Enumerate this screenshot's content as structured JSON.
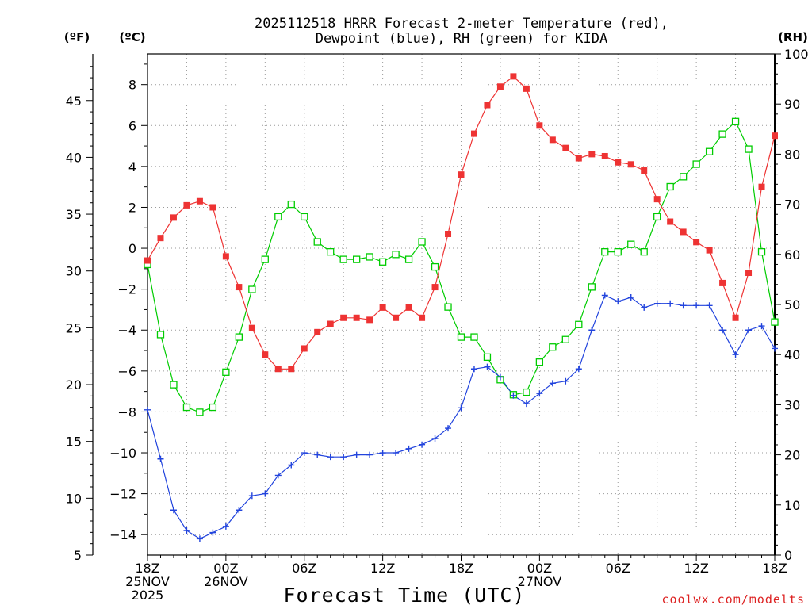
{
  "chart_data": {
    "type": "line",
    "title_line1": "2025112518 HRRR Forecast 2-meter Temperature (red),",
    "title_line2": "Dewpoint (blue), RH (green) for KIDA",
    "xlabel": "Forecast Time (UTC)",
    "watermark": "coolwx.com/modelts",
    "unit_f": "(ºF)",
    "unit_c": "(ºC)",
    "unit_rh": "(RH)",
    "x_ticks": [
      {
        "h": 0,
        "lines": [
          "18Z",
          "25NOV",
          "2025"
        ]
      },
      {
        "h": 6,
        "lines": [
          "00Z",
          "26NOV"
        ]
      },
      {
        "h": 12,
        "lines": [
          "06Z"
        ]
      },
      {
        "h": 18,
        "lines": [
          "12Z"
        ]
      },
      {
        "h": 24,
        "lines": [
          "18Z"
        ]
      },
      {
        "h": 30,
        "lines": [
          "00Z",
          "27NOV"
        ]
      },
      {
        "h": 36,
        "lines": [
          "06Z"
        ]
      },
      {
        "h": 42,
        "lines": [
          "12Z"
        ]
      },
      {
        "h": 48,
        "lines": [
          "18Z"
        ]
      }
    ],
    "xlim": [
      0,
      48
    ],
    "ylim_c": [
      -15,
      9.5
    ],
    "ylim_rh": [
      0,
      100
    ],
    "c_ticks": [
      8,
      6,
      4,
      2,
      0,
      -2,
      -4,
      -6,
      -8,
      -10,
      -12,
      -14
    ],
    "f_ticks": [
      45,
      40,
      35,
      30,
      25,
      20,
      15,
      10,
      5
    ],
    "rh_ticks": [
      100,
      90,
      80,
      70,
      60,
      50,
      40,
      30,
      20,
      10,
      0
    ],
    "grid": true,
    "colors": {
      "temperature": "#ee3333",
      "dewpoint": "#2244dd",
      "rh": "#00cc00"
    },
    "temperature_c": [
      -0.6,
      0.5,
      1.5,
      2.1,
      2.3,
      2.0,
      -0.4,
      -1.9,
      -3.9,
      -5.2,
      -5.9,
      -5.9,
      -4.9,
      -4.1,
      -3.7,
      -3.4,
      -3.4,
      -3.5,
      -2.9,
      -3.4,
      -2.9,
      -3.4,
      -1.9,
      0.7,
      3.6,
      5.6,
      7.0,
      7.9,
      8.4,
      7.8,
      6.0,
      5.3,
      4.9,
      4.4,
      4.6,
      4.5,
      4.2,
      4.1,
      3.8,
      2.4,
      1.3,
      0.8,
      0.3,
      -0.1,
      -1.7,
      -3.4,
      -1.2,
      3.0,
      5.5
    ],
    "dewpoint_c": [
      -7.9,
      -10.3,
      -12.8,
      -13.8,
      -14.2,
      -13.9,
      -13.6,
      -12.8,
      -12.1,
      -12.0,
      -11.1,
      -10.6,
      -10.0,
      -10.1,
      -10.2,
      -10.2,
      -10.1,
      -10.1,
      -10.0,
      -10.0,
      -9.8,
      -9.6,
      -9.3,
      -8.8,
      -7.8,
      -5.9,
      -5.8,
      -6.3,
      -7.2,
      -7.6,
      -7.1,
      -6.6,
      -6.5,
      -5.9,
      -4.0,
      -2.3,
      -2.6,
      -2.4,
      -2.9,
      -2.7,
      -2.7,
      -2.8,
      -2.8,
      -2.8,
      -4.0,
      -5.2,
      -4.0,
      -3.8,
      -4.9
    ],
    "rh_pct": [
      58,
      44,
      34,
      29.5,
      28.5,
      29.5,
      36.5,
      43.5,
      53,
      59,
      67.5,
      70,
      67.5,
      62.5,
      60.5,
      59,
      59,
      59.5,
      58.5,
      60,
      59,
      62.5,
      57.5,
      49.5,
      43.5,
      43.5,
      39.5,
      35,
      32,
      32.5,
      38.5,
      41.5,
      43,
      46,
      53.5,
      60.5,
      60.5,
      62,
      60.5,
      67.5,
      73.5,
      75.5,
      78,
      80.5,
      84,
      86.5,
      81,
      60.5,
      46.5
    ]
  }
}
